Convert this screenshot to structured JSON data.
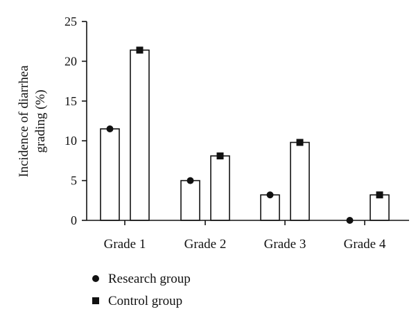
{
  "chart_data": {
    "type": "bar",
    "categories": [
      "Grade 1",
      "Grade 2",
      "Grade 3",
      "Grade 4"
    ],
    "series": [
      {
        "name": "Research group",
        "marker": "circle",
        "values": [
          11.5,
          5.0,
          3.2,
          0.0
        ]
      },
      {
        "name": "Control group",
        "marker": "square",
        "values": [
          21.4,
          8.1,
          9.8,
          3.2
        ]
      }
    ],
    "ylabel_lines": [
      "Incidence of diarrhea",
      "grading (%)"
    ],
    "xlabel": "",
    "ylim": [
      0,
      25
    ],
    "yticks": [
      0,
      5,
      10,
      15,
      20,
      25
    ],
    "grid": false,
    "legend_position": "bottom-left",
    "bar_fill": "#ffffff",
    "stroke_color": "#111111"
  }
}
